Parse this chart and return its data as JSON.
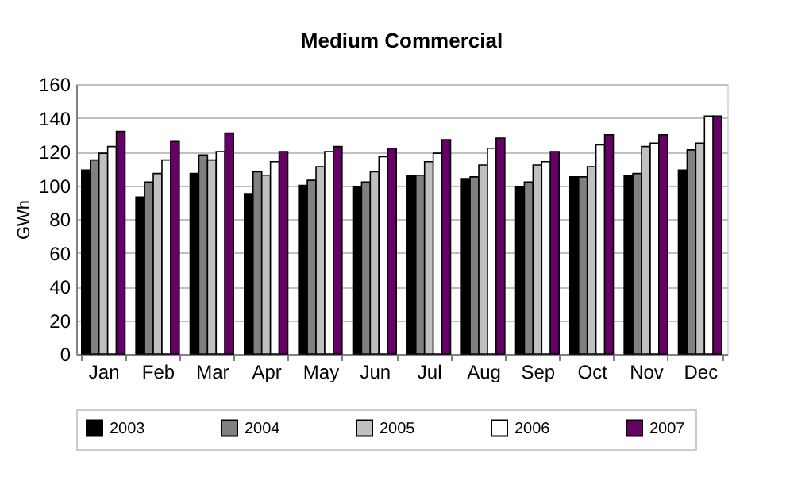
{
  "chart_data": {
    "type": "bar",
    "title": "Medium Commercial",
    "ylabel": "GWh",
    "categories": [
      "Jan",
      "Feb",
      "Mar",
      "Apr",
      "May",
      "Jun",
      "Jul",
      "Aug",
      "Sep",
      "Oct",
      "Nov",
      "Dec"
    ],
    "series": [
      {
        "name": "2003",
        "color": "#000000",
        "values": [
          109,
          93,
          107,
          95,
          100,
          99,
          106,
          104,
          99,
          105,
          106,
          109
        ]
      },
      {
        "name": "2004",
        "color": "#808080",
        "values": [
          115,
          102,
          118,
          108,
          103,
          102,
          106,
          105,
          102,
          105,
          107,
          121
        ]
      },
      {
        "name": "2005",
        "color": "#c0c0c0",
        "values": [
          119,
          107,
          115,
          106,
          111,
          108,
          114,
          112,
          112,
          111,
          123,
          125
        ]
      },
      {
        "name": "2006",
        "color": "#ffffff",
        "values": [
          123,
          115,
          120,
          114,
          120,
          117,
          119,
          122,
          114,
          124,
          125,
          141
        ]
      },
      {
        "name": "2007",
        "color": "#660066",
        "values": [
          132,
          126,
          131,
          120,
          123,
          122,
          127,
          128,
          120,
          130,
          130,
          141
        ]
      }
    ],
    "ylim": [
      0,
      160
    ],
    "yticks": [
      0,
      20,
      40,
      60,
      80,
      100,
      120,
      140,
      160
    ],
    "grid": "y",
    "legend": "bottom"
  }
}
